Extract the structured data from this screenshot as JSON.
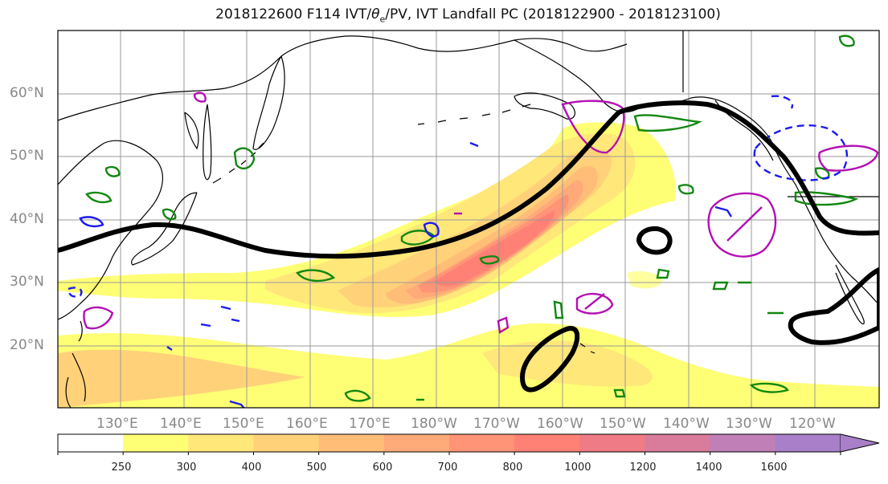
{
  "title_prefix": "2018122600 F114 IVT/",
  "title_theta": "θ",
  "title_theta_sub": "e",
  "title_suffix": "/PV, IVT Landfall PC (2018122900 - 2018123100)",
  "lat_labels": [
    "60°N",
    "50°N",
    "40°N",
    "30°N",
    "20°N"
  ],
  "lon_labels": [
    "130°E",
    "140°E",
    "150°E",
    "160°E",
    "170°E",
    "180°W",
    "170°W",
    "160°W",
    "150°W",
    "140°W",
    "130°W",
    "120°W"
  ],
  "colorbar": {
    "ticks": [
      "250",
      "300",
      "400",
      "500",
      "600",
      "700",
      "800",
      "1000",
      "1200",
      "1400",
      "1600"
    ],
    "colors": [
      "#ffffff",
      "#ffff75",
      "#ffe77a",
      "#ffd27a",
      "#ffbd78",
      "#ffaa78",
      "#ff9476",
      "#ff8075",
      "#ef7b86",
      "#d97c9b",
      "#c17fb8",
      "#a87fc8"
    ]
  },
  "chart_data": {
    "type": "contour-map",
    "field": "IVT",
    "levels": [
      250,
      300,
      400,
      500,
      600,
      700,
      800,
      1000,
      1200,
      1400,
      1600
    ],
    "lat_range": [
      10,
      70
    ],
    "lon_range": [
      "120°E",
      "110°W"
    ]
  }
}
